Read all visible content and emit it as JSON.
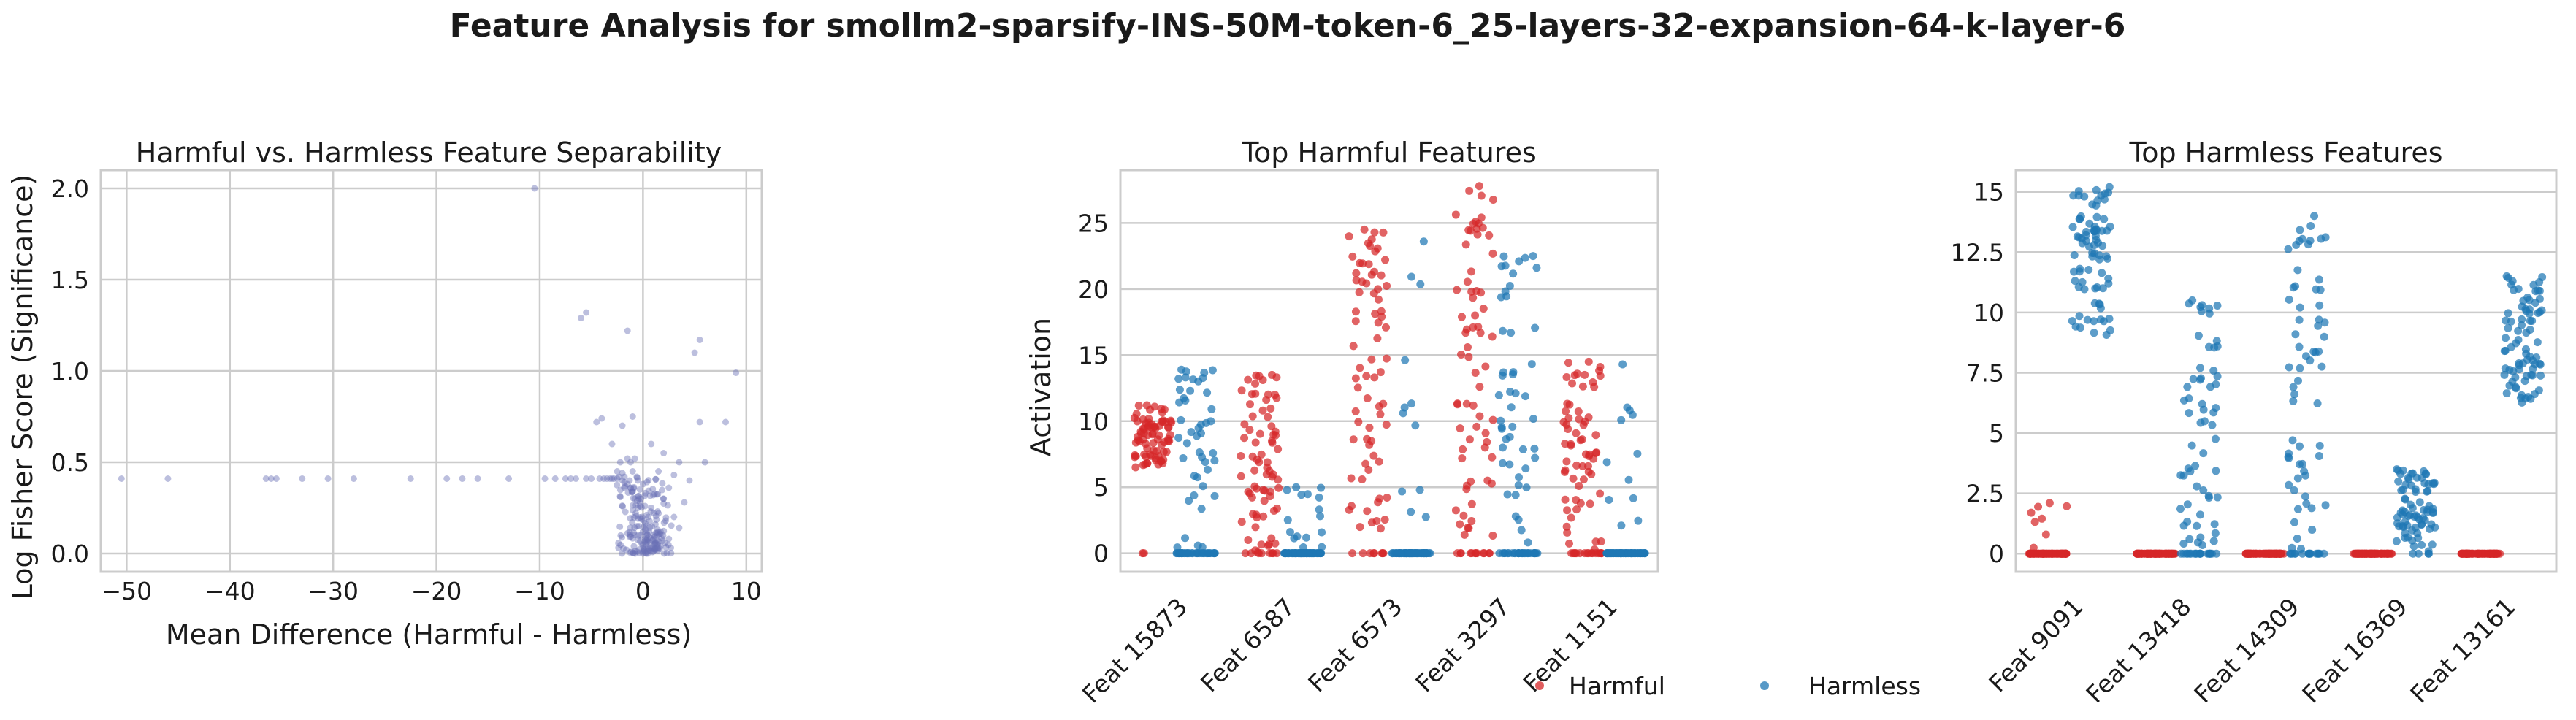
{
  "suptitle": "Feature Analysis for smollm2-sparsify-INS-50M-token-6_25-layers-32-expansion-64-k-layer-6",
  "colors": {
    "harmful": "#d62728",
    "harmless": "#1f77b4",
    "scatter": "#6b72b5",
    "grid": "#cccccc",
    "frame": "#cccccc"
  },
  "chart_data": [
    {
      "type": "scatter",
      "title": "Harmful vs. Harmless Feature Separability",
      "xlabel": "Mean Difference (Harmful - Harmless)",
      "ylabel": "Log Fisher Score (Significance)",
      "xlim": [
        -52.5,
        11.5
      ],
      "ylim": [
        -0.1,
        2.1
      ],
      "xticks": [
        -50,
        -40,
        -30,
        -20,
        -10,
        0,
        10
      ],
      "yticks": [
        0.0,
        0.5,
        1.0,
        1.5,
        2.0
      ],
      "grid": true,
      "points": [
        [
          -50.5,
          0.41
        ],
        [
          -46,
          0.41
        ],
        [
          -36.5,
          0.41
        ],
        [
          -36,
          0.41
        ],
        [
          -35.5,
          0.41
        ],
        [
          -33,
          0.41
        ],
        [
          -30.5,
          0.41
        ],
        [
          -28,
          0.41
        ],
        [
          -22.5,
          0.41
        ],
        [
          -19,
          0.41
        ],
        [
          -17.5,
          0.41
        ],
        [
          -16,
          0.41
        ],
        [
          -13,
          0.41
        ],
        [
          -10.5,
          2.0
        ],
        [
          -9.5,
          0.41
        ],
        [
          -8.5,
          0.41
        ],
        [
          -7.5,
          0.41
        ],
        [
          -7,
          0.41
        ],
        [
          -6.5,
          0.41
        ],
        [
          -6,
          1.29
        ],
        [
          -5.5,
          1.32
        ],
        [
          -5.5,
          0.41
        ],
        [
          -5,
          0.41
        ],
        [
          -4.5,
          0.72
        ],
        [
          -4.2,
          0.41
        ],
        [
          -4,
          0.74
        ],
        [
          -3.8,
          0.41
        ],
        [
          -3.5,
          0.41
        ],
        [
          -3.2,
          0.41
        ],
        [
          -3,
          0.6
        ],
        [
          -3,
          0.41
        ],
        [
          -2.8,
          0.41
        ],
        [
          -2.5,
          0.45
        ],
        [
          -2.5,
          0.41
        ],
        [
          -2.3,
          0.42
        ],
        [
          -2.2,
          0.5
        ],
        [
          -2,
          0.4
        ],
        [
          -2,
          0.44
        ],
        [
          -2,
          0.7
        ],
        [
          -1.8,
          0.39
        ],
        [
          -1.8,
          0.42
        ],
        [
          -1.5,
          1.22
        ],
        [
          -1.5,
          0.38
        ],
        [
          -1.5,
          0.52
        ],
        [
          -1.3,
          0.4
        ],
        [
          -1.2,
          0.36
        ],
        [
          -1.2,
          0.5
        ],
        [
          -1,
          0.34
        ],
        [
          -1,
          0.45
        ],
        [
          -1,
          0.75
        ],
        [
          -0.8,
          0.3
        ],
        [
          -0.8,
          0.52
        ],
        [
          -0.7,
          0.22
        ],
        [
          -0.6,
          0.42
        ],
        [
          -0.5,
          0.25
        ],
        [
          -0.5,
          0.4
        ],
        [
          -0.4,
          0.15
        ],
        [
          -0.3,
          0.28
        ],
        [
          -0.3,
          0.35
        ],
        [
          -0.2,
          0.1
        ],
        [
          -0.2,
          0.3
        ],
        [
          -0.1,
          0.05
        ],
        [
          -0.1,
          0.2
        ],
        [
          0,
          0.0
        ],
        [
          0,
          0.12
        ],
        [
          0,
          0.38
        ],
        [
          0.1,
          0.02
        ],
        [
          0.1,
          0.18
        ],
        [
          0.2,
          0.08
        ],
        [
          0.2,
          0.26
        ],
        [
          0.3,
          0.05
        ],
        [
          0.3,
          0.15
        ],
        [
          0.4,
          0.1
        ],
        [
          0.5,
          0.03
        ],
        [
          0.5,
          0.2
        ],
        [
          0.6,
          0.12
        ],
        [
          0.7,
          0.06
        ],
        [
          0.8,
          0.25
        ],
        [
          0.8,
          0.6
        ],
        [
          1,
          0.1
        ],
        [
          1,
          0.32
        ],
        [
          1.2,
          0.16
        ],
        [
          1.3,
          0.05
        ],
        [
          1.5,
          0.22
        ],
        [
          1.5,
          0.45
        ],
        [
          1.7,
          0.12
        ],
        [
          2,
          0.3
        ],
        [
          2,
          0.55
        ],
        [
          2.2,
          0.18
        ],
        [
          2.5,
          0.36
        ],
        [
          2.5,
          0.08
        ],
        [
          3,
          0.43
        ],
        [
          3,
          0.2
        ],
        [
          3.5,
          0.5
        ],
        [
          3.5,
          0.14
        ],
        [
          4,
          0.28
        ],
        [
          4.5,
          0.4
        ],
        [
          5,
          1.1
        ],
        [
          5.5,
          1.17
        ],
        [
          5.5,
          0.72
        ],
        [
          6,
          0.5
        ],
        [
          8,
          0.72
        ],
        [
          9,
          0.99
        ]
      ]
    },
    {
      "type": "strip",
      "title": "Top Harmful Features",
      "xlabel": "",
      "ylabel": "Activation",
      "categories": [
        "Feat 15873",
        "Feat 6587",
        "Feat 6573",
        "Feat 3297",
        "Feat 1151"
      ],
      "ylim": [
        -1.4,
        29.0
      ],
      "yticks": [
        0,
        5,
        10,
        15,
        20,
        25
      ],
      "grid": true,
      "series": [
        {
          "name": "Harmful",
          "color": "#d62728",
          "ranges": [
            [
              6.5,
              11.2
            ],
            [
              0.0,
              13.5
            ],
            [
              0.3,
              24.5
            ],
            [
              0.0,
              27.8
            ],
            [
              0.0,
              14.5
            ]
          ],
          "zero_share": [
            0.03,
            0.1,
            0.1,
            0.15,
            0.2
          ]
        },
        {
          "name": "Harmless",
          "color": "#1f77b4",
          "ranges": [
            [
              0.0,
              13.9
            ],
            [
              0.0,
              5.0
            ],
            [
              0.0,
              23.6
            ],
            [
              0.0,
              22.5
            ],
            [
              0.0,
              14.3
            ]
          ],
          "zero_share": [
            0.45,
            0.8,
            0.85,
            0.4,
            0.85
          ]
        }
      ],
      "legend": {
        "placement": "bottom-center",
        "entries": [
          "Harmful",
          "Harmless"
        ]
      }
    },
    {
      "type": "strip",
      "title": "Top Harmless Features",
      "xlabel": "",
      "ylabel": "",
      "categories": [
        "Feat 9091",
        "Feat 13418",
        "Feat 14309",
        "Feat 16369",
        "Feat 13161"
      ],
      "ylim": [
        -0.75,
        15.9
      ],
      "yticks": [
        0.0,
        2.5,
        5.0,
        7.5,
        10.0,
        12.5,
        15.0
      ],
      "grid": true,
      "series": [
        {
          "name": "Harmful",
          "color": "#d62728",
          "ranges": [
            [
              0.0,
              2.1
            ],
            [
              0.0,
              0.0
            ],
            [
              0.0,
              0.0
            ],
            [
              0.0,
              0.0
            ],
            [
              0.0,
              0.0
            ]
          ],
          "zero_share": [
            0.9,
            1.0,
            1.0,
            1.0,
            1.0
          ]
        },
        {
          "name": "Harmless",
          "color": "#1f77b4",
          "ranges": [
            [
              9.0,
              15.2
            ],
            [
              0.0,
              10.5
            ],
            [
              0.0,
              14.0
            ],
            [
              0.0,
              3.5
            ],
            [
              6.2,
              11.5
            ]
          ],
          "zero_share": [
            0.0,
            0.25,
            0.2,
            0.05,
            0.0
          ]
        }
      ]
    }
  ]
}
